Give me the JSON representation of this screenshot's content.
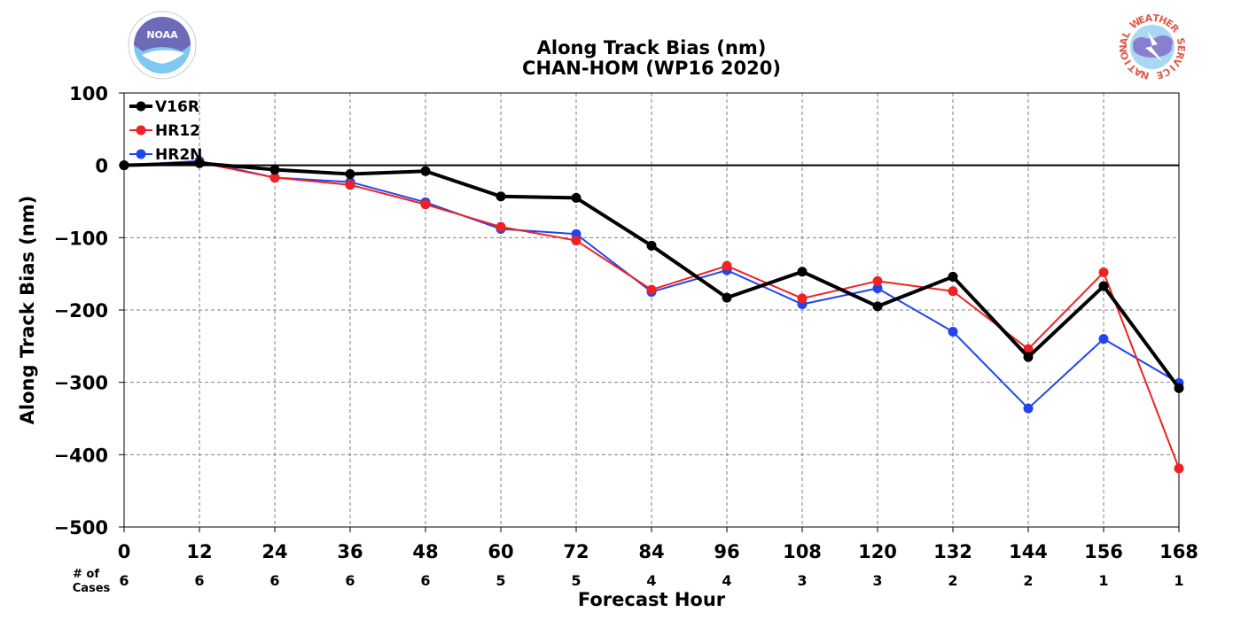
{
  "chart_data": {
    "type": "line",
    "title": "Along Track Bias (nm)",
    "subtitle": "CHAN-HOM (WP16 2020)",
    "xlabel": "Forecast Hour",
    "ylabel": "Along Track Bias (nm)",
    "xlim": [
      0,
      168
    ],
    "ylim": [
      -500,
      100
    ],
    "x_ticks": [
      0,
      12,
      24,
      36,
      48,
      60,
      72,
      84,
      96,
      108,
      120,
      132,
      144,
      156,
      168
    ],
    "y_ticks": [
      100,
      0,
      -100,
      -200,
      -300,
      -400,
      -500
    ],
    "y_tick_labels": [
      "100",
      "0",
      "−100",
      "−200",
      "−300",
      "−400",
      "−500"
    ],
    "cases_label": [
      "# of",
      "Cases"
    ],
    "cases": [
      6,
      6,
      6,
      6,
      6,
      5,
      5,
      4,
      4,
      3,
      3,
      2,
      2,
      1,
      1
    ],
    "grid": true,
    "zero_line": true,
    "legend_position": "top-left",
    "series": [
      {
        "name": "V16R",
        "color": "#000000",
        "x": [
          0,
          12,
          24,
          36,
          48,
          60,
          72,
          84,
          96,
          108,
          120,
          132,
          144,
          156,
          168
        ],
        "values": [
          0,
          3,
          -6,
          -12,
          -8,
          -43,
          -45,
          -111,
          -183,
          -147,
          -195,
          -154,
          -265,
          -167,
          -308
        ]
      },
      {
        "name": "HR12",
        "color": "#ee2222",
        "x": [
          0,
          12,
          24,
          36,
          48,
          60,
          72,
          84,
          96,
          108,
          120,
          132,
          144,
          156,
          168
        ],
        "values": [
          0,
          4,
          -17,
          -27,
          -54,
          -85,
          -104,
          -172,
          -139,
          -184,
          -160,
          -174,
          -254,
          -148,
          -419
        ]
      },
      {
        "name": "HR2N",
        "color": "#2244ee",
        "x": [
          0,
          12,
          24,
          36,
          48,
          60,
          72,
          84,
          96,
          108,
          120,
          132,
          144,
          156,
          168
        ],
        "values": [
          0,
          6,
          -17,
          -23,
          -51,
          -88,
          -95,
          -175,
          -145,
          -192,
          -170,
          -230,
          -336,
          -240,
          -301
        ]
      }
    ]
  },
  "logos": {
    "left": {
      "name": "noaa-logo",
      "text": "NOAA"
    },
    "right": {
      "name": "nws-logo",
      "text": "NATIONAL WEATHER SERVICE"
    }
  }
}
